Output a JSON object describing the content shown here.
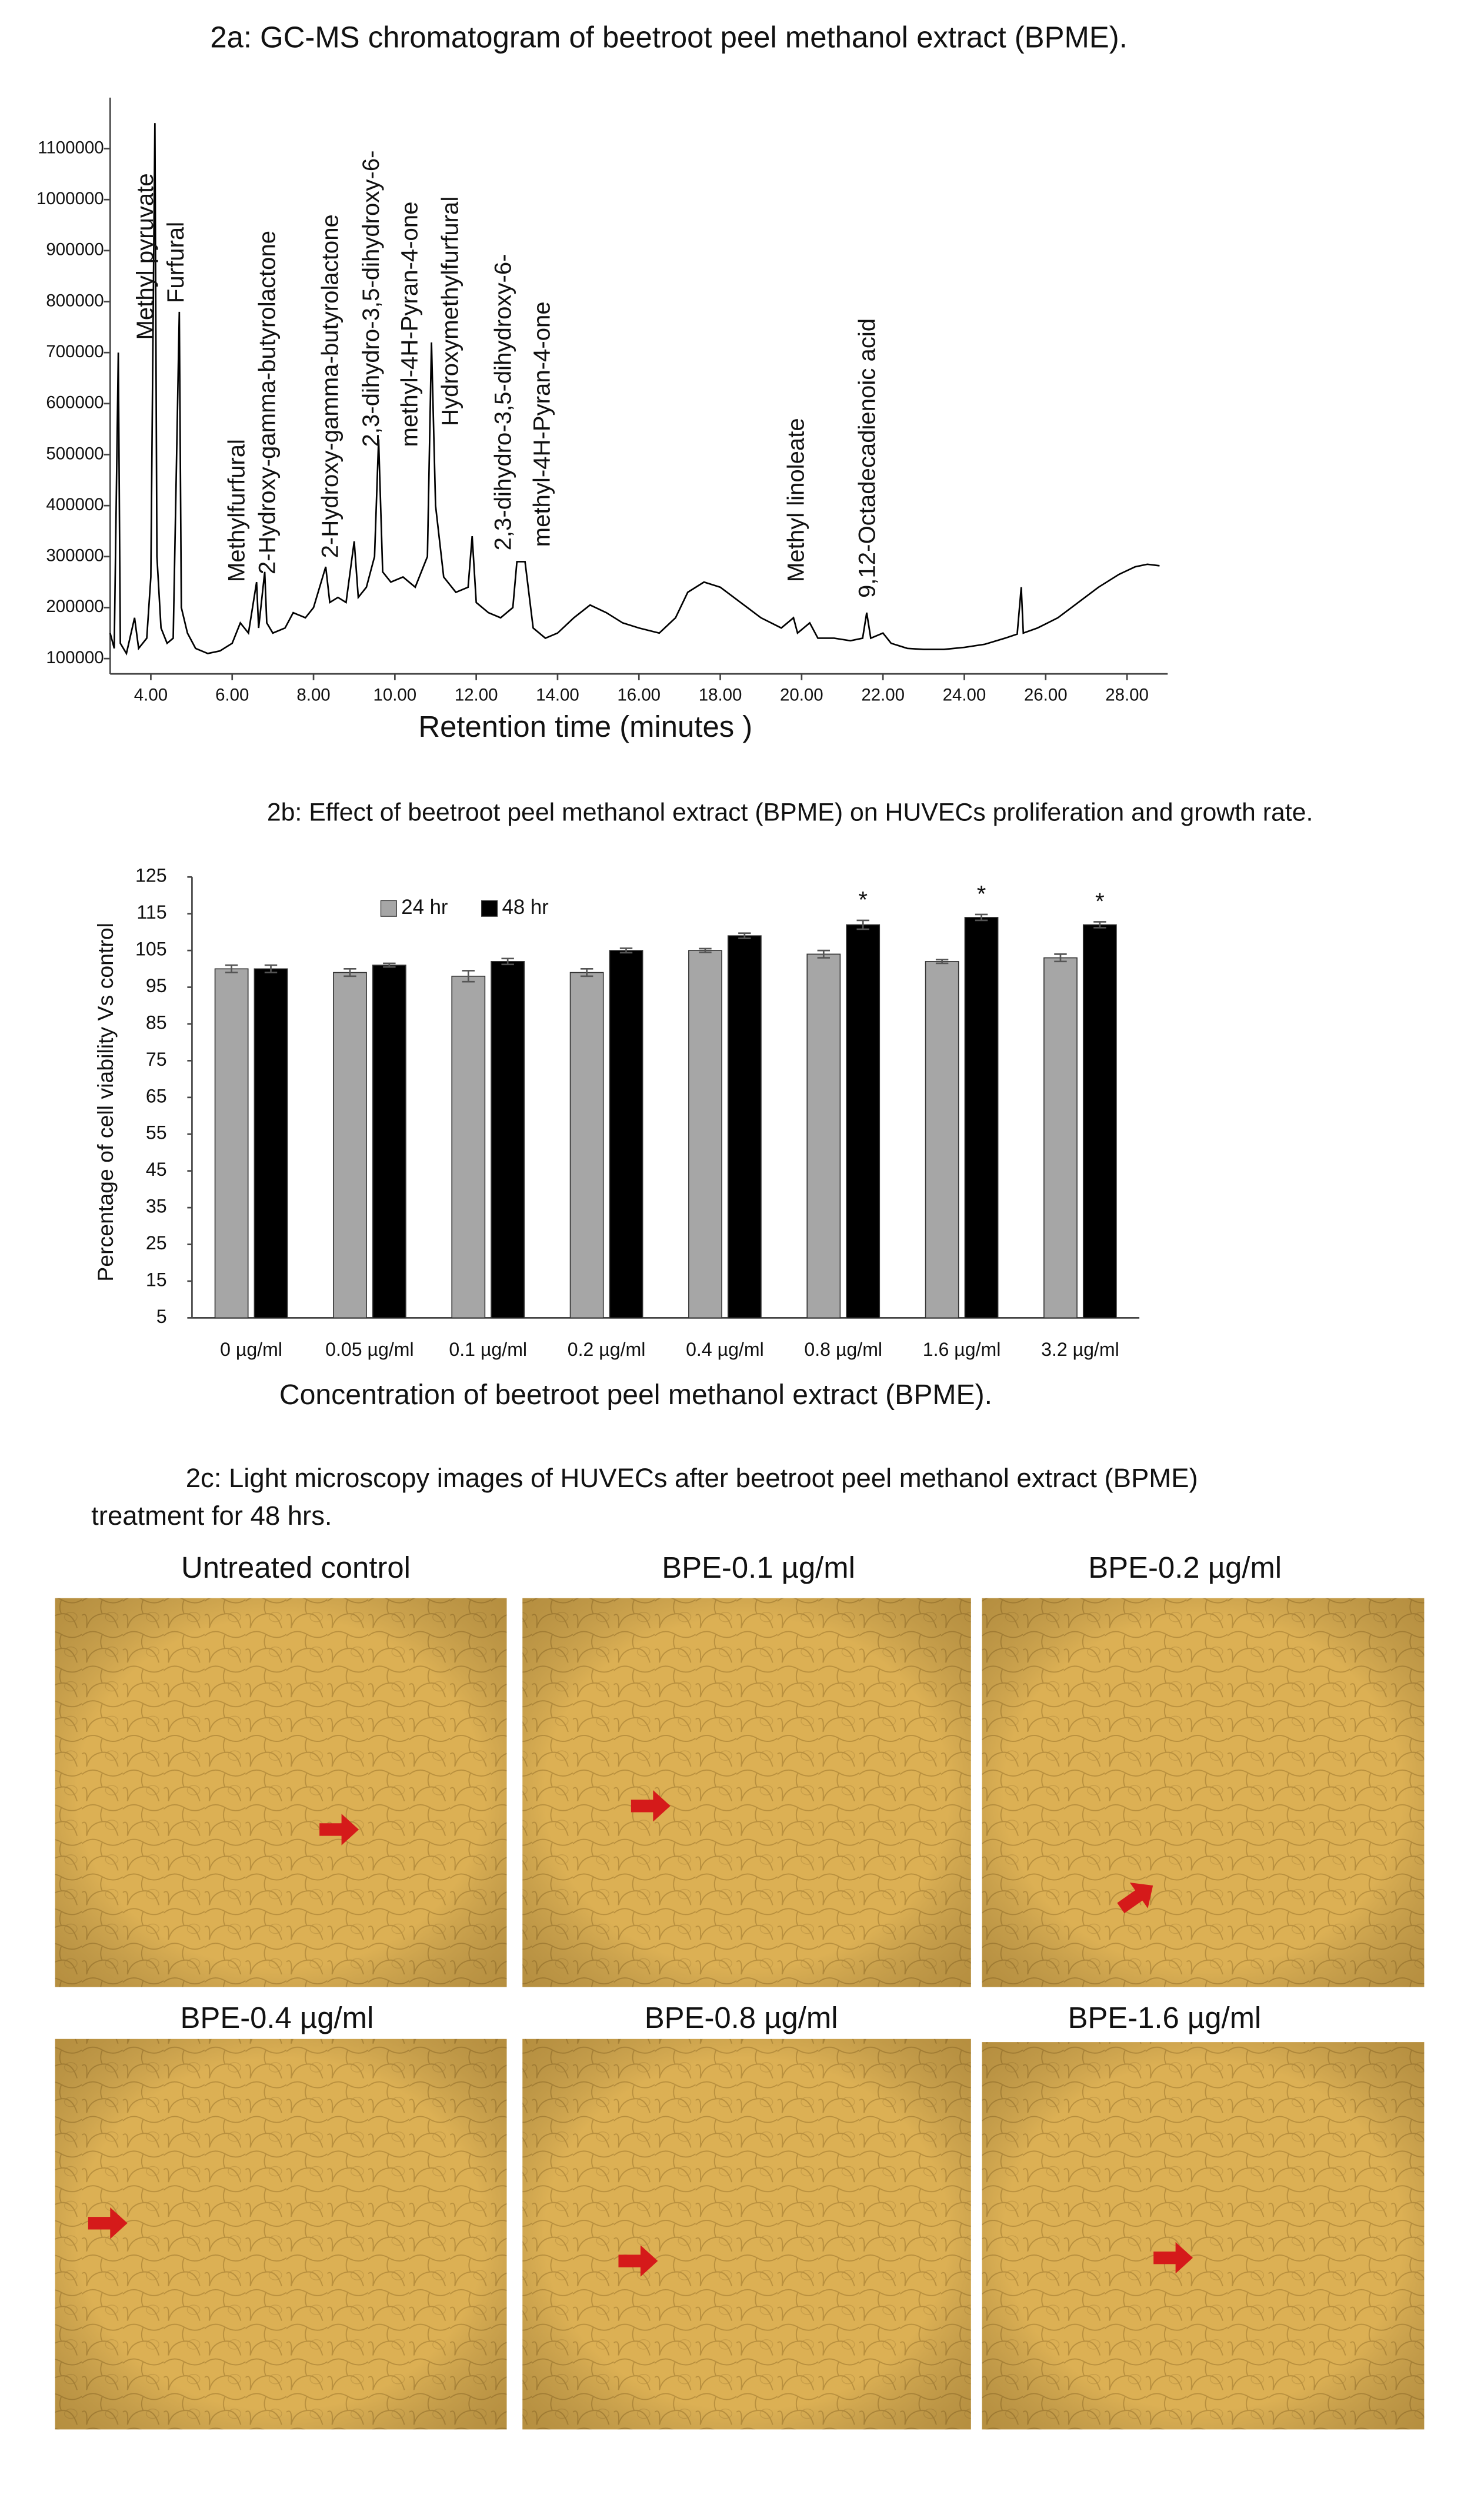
{
  "chart_data": [
    {
      "type": "line",
      "title": "2a: GC-MS chromatogram of beetroot peel methanol extract (BPME).",
      "x_label": "Retention time (minutes )",
      "color": "#000000",
      "xlim": [
        3,
        29
      ],
      "ylim": [
        70000,
        1200000
      ],
      "xticks": [
        {
          "value": 4,
          "label": "4.00"
        },
        {
          "value": 6,
          "label": "6.00"
        },
        {
          "value": 8,
          "label": "8.00"
        },
        {
          "value": 10,
          "label": "10.00"
        },
        {
          "value": 12,
          "label": "12.00"
        },
        {
          "value": 14,
          "label": "14.00"
        },
        {
          "value": 16,
          "label": "16.00"
        },
        {
          "value": 18,
          "label": "18.00"
        },
        {
          "value": 20,
          "label": "20.00"
        },
        {
          "value": 22,
          "label": "22.00"
        },
        {
          "value": 24,
          "label": "24.00"
        },
        {
          "value": 26,
          "label": "26.00"
        },
        {
          "value": 28,
          "label": "28.00"
        }
      ],
      "yticks": [
        100000,
        200000,
        300000,
        400000,
        500000,
        600000,
        700000,
        800000,
        900000,
        1000000,
        1100000
      ],
      "x": [
        3.0,
        3.1,
        3.2,
        3.25,
        3.4,
        3.6,
        3.7,
        3.9,
        4.0,
        4.1,
        4.15,
        4.25,
        4.4,
        4.55,
        4.7,
        4.75,
        4.9,
        5.1,
        5.4,
        5.7,
        6.0,
        6.2,
        6.4,
        6.6,
        6.65,
        6.8,
        6.85,
        7.0,
        7.3,
        7.5,
        7.8,
        8.0,
        8.3,
        8.4,
        8.6,
        8.8,
        9.0,
        9.1,
        9.3,
        9.5,
        9.6,
        9.7,
        9.9,
        10.2,
        10.5,
        10.8,
        10.9,
        11.0,
        11.2,
        11.5,
        11.8,
        11.9,
        12.0,
        12.3,
        12.6,
        12.9,
        13.0,
        13.2,
        13.4,
        13.7,
        14.0,
        14.4,
        14.8,
        15.2,
        15.6,
        16.0,
        16.5,
        16.9,
        17.2,
        17.6,
        18.0,
        18.5,
        19.0,
        19.5,
        19.8,
        19.9,
        20.2,
        20.4,
        20.8,
        21.2,
        21.5,
        21.6,
        21.7,
        22.0,
        22.2,
        22.6,
        23.0,
        23.5,
        24.0,
        24.5,
        25.0,
        25.3,
        25.4,
        25.45,
        25.8,
        26.3,
        26.8,
        27.3,
        27.8,
        28.2,
        28.5,
        28.8
      ],
      "values": [
        150000,
        120000,
        700000,
        130000,
        110000,
        180000,
        120000,
        140000,
        260000,
        1150000,
        300000,
        160000,
        130000,
        140000,
        780000,
        200000,
        150000,
        120000,
        110000,
        115000,
        130000,
        170000,
        150000,
        250000,
        160000,
        270000,
        170000,
        150000,
        160000,
        190000,
        180000,
        200000,
        280000,
        210000,
        220000,
        210000,
        330000,
        220000,
        240000,
        300000,
        530000,
        270000,
        250000,
        260000,
        240000,
        300000,
        720000,
        400000,
        260000,
        230000,
        240000,
        340000,
        210000,
        190000,
        180000,
        200000,
        290000,
        290000,
        160000,
        140000,
        150000,
        180000,
        205000,
        190000,
        170000,
        160000,
        150000,
        180000,
        230000,
        250000,
        240000,
        210000,
        180000,
        160000,
        180000,
        150000,
        170000,
        140000,
        140000,
        135000,
        140000,
        190000,
        140000,
        150000,
        130000,
        120000,
        118000,
        118000,
        122000,
        128000,
        140000,
        148000,
        240000,
        150000,
        160000,
        180000,
        210000,
        240000,
        265000,
        280000,
        285000,
        282000
      ],
      "annotations": [
        {
          "text": "Methyl pyruvate",
          "x": 3.9,
          "y": 725000
        },
        {
          "text": "Furfural",
          "x": 4.65,
          "y": 797000
        },
        {
          "text": "Methylfurfural",
          "x": 6.15,
          "y": 250000
        },
        {
          "text": "2-Hydroxy-gamma-butyrolactone",
          "x": 6.9,
          "y": 265000
        },
        {
          "text": "2-Hydroxy-gamma-butyrolactone",
          "x": 8.45,
          "y": 297000
        },
        {
          "text": "2,3-dihydro-3,5-dihydroxy-6-",
          "x": 9.45,
          "y": 515000
        },
        {
          "text": "methyl-4H-Pyran-4-one",
          "x": 10.4,
          "y": 515000
        },
        {
          "text": "Hydroxymethylfurfural",
          "x": 11.4,
          "y": 556000
        },
        {
          "text": "2,3-dihydro-3,5-dihydroxy-6-",
          "x": 12.7,
          "y": 312000
        },
        {
          "text": "methyl-4H-Pyran-4-one",
          "x": 13.65,
          "y": 319000
        },
        {
          "text": "Methyl linoleate",
          "x": 19.9,
          "y": 250000
        },
        {
          "text": "9,12-Octadecadienoic acid",
          "x": 21.65,
          "y": 219000
        }
      ]
    },
    {
      "type": "bar",
      "title": "2b: Effect of beetroot peel methanol extract (BPME) on HUVECs proliferation and growth rate.",
      "x_label": "Concentration of beetroot peel methanol extract (BPME).",
      "y_label": "Percentage of cell viability Vs control",
      "categories": [
        "0 µg/ml",
        "0.05 µg/ml",
        "0.1 µg/ml",
        "0.2 µg/ml",
        "0.4 µg/ml",
        "0.8 µg/ml",
        "1.6 µg/ml",
        "3.2 µg/ml"
      ],
      "ylim": [
        5,
        125
      ],
      "yticks": [
        5,
        15,
        25,
        35,
        45,
        55,
        65,
        75,
        85,
        95,
        105,
        115,
        125
      ],
      "legend": "top-left",
      "series": [
        {
          "name": "24 hr",
          "color": "#a6a6a6",
          "values": [
            100,
            99,
            98,
            99,
            105,
            104,
            102,
            103
          ],
          "errors": [
            1,
            1,
            1.5,
            1,
            0.5,
            1,
            0.5,
            1
          ]
        },
        {
          "name": "48 hr",
          "color": "#000000",
          "values": [
            100,
            101,
            102,
            105,
            109,
            112,
            114,
            112
          ],
          "errors": [
            1,
            0.5,
            0.8,
            0.6,
            0.7,
            1.2,
            0.8,
            0.8
          ],
          "significance": [
            null,
            null,
            null,
            null,
            null,
            "*",
            "*",
            "*"
          ]
        }
      ]
    }
  ],
  "microscopy": {
    "title_lines": [
      "2c: Light microscopy images of HUVECs after beetroot peel methanol extract (BPME)",
      "treatment for 48 hrs."
    ],
    "panels": [
      "Untreated control",
      "BPE-0.1 µg/ml",
      "BPE-0.2 µg/ml",
      "BPE-0.4 µg/ml",
      "BPE-0.8 µg/ml",
      "BPE-1.6 µg/ml"
    ]
  }
}
